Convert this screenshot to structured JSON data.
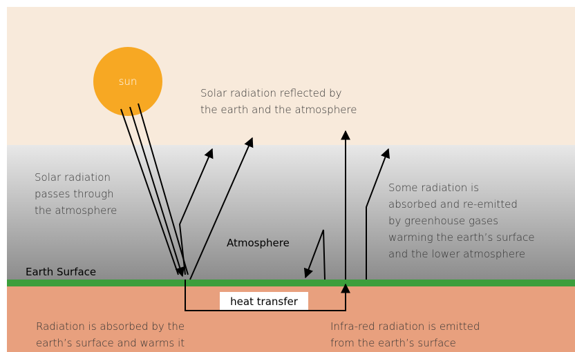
{
  "sun": "sun",
  "reflected": [
    "Solar radiation reflected by",
    "the earth and the atmosphere"
  ],
  "passes": [
    "Solar radiation",
    "passes through",
    "the atmosphere"
  ],
  "atmosphere": "Atmosphere",
  "earth_surface": "Earth Surface",
  "greenhouse": [
    "Some radiation is",
    "absorbed and re-emitted",
    "by greenhouse gases",
    "warming the earth’s surface",
    "and the lower atmosphere"
  ],
  "heat_transfer": "heat transfer",
  "absorbed": [
    "Radiation is absorbed by the",
    "earth’s surface and warms it"
  ],
  "infrared": [
    "Infra-red radiation is emitted",
    "from the earth’s surface"
  ]
}
